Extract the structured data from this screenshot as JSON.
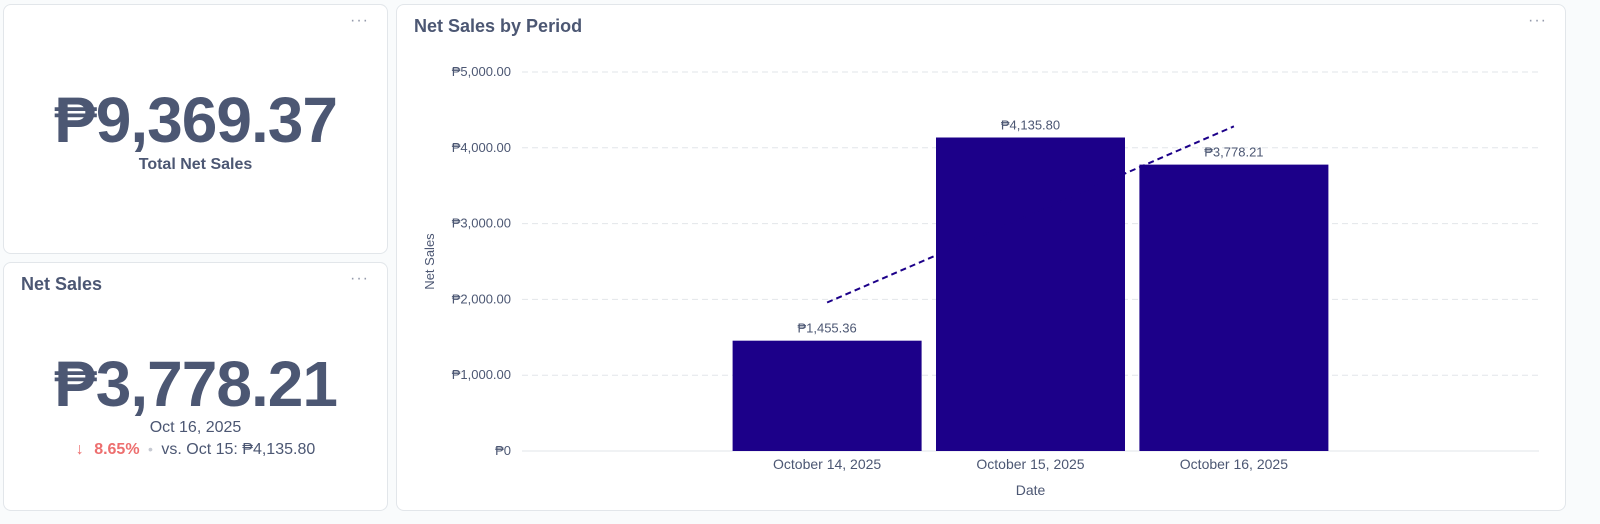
{
  "total_card": {
    "value": "₱9,369.37",
    "label": "Total Net Sales",
    "menu_glyph": "···"
  },
  "net_sales_card": {
    "title": "Net Sales",
    "value": "₱3,778.21",
    "date": "Oct 16, 2025",
    "arrow": "↓",
    "change_pct": "8.65%",
    "separator": "•",
    "compare_text": "vs. Oct 15: ₱4,135.80",
    "menu_glyph": "···"
  },
  "chart_card": {
    "title": "Net Sales by Period",
    "menu_glyph": "···"
  },
  "colors": {
    "bar": "#1c0089",
    "trend": "#1c0089",
    "text": "#4c5773",
    "negative": "#ed6e6e",
    "grid": "#e2e6ea"
  },
  "chart_data": {
    "type": "bar",
    "xlabel": "Date",
    "ylabel": "Net Sales",
    "categories": [
      "October 14, 2025",
      "October 15, 2025",
      "October 16, 2025"
    ],
    "values": [
      1455.36,
      4135.8,
      3778.21
    ],
    "value_labels": [
      "₱1,455.36",
      "₱4,135.80",
      "₱3,778.21"
    ],
    "yticks": [
      0,
      1000,
      2000,
      3000,
      4000,
      5000
    ],
    "ytick_labels": [
      "₱0",
      "₱1,000.00",
      "₱2,000.00",
      "₱3,000.00",
      "₱4,000.00",
      "₱5,000.00"
    ],
    "ylim": [
      0,
      5000
    ],
    "trend_line": {
      "start": 1959,
      "end": 4283,
      "style": "dashed"
    },
    "grid": true,
    "legend": "none"
  }
}
